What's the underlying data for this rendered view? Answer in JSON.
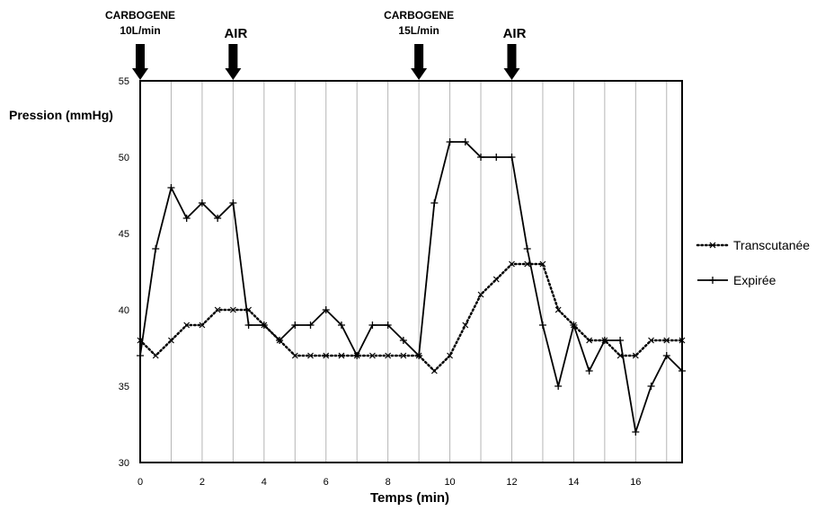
{
  "chart_data": {
    "type": "line",
    "title": "",
    "xlabel": "Temps (min)",
    "ylabel": "Pression (mmHg)",
    "xlim": [
      0,
      17.5
    ],
    "ylim": [
      30,
      55
    ],
    "grid": "vertical",
    "legend_placement": "right",
    "xticks": [
      0,
      2,
      4,
      6,
      8,
      10,
      12,
      14,
      16
    ],
    "yticks": [
      30,
      35,
      40,
      45,
      50,
      55
    ],
    "x": [
      0,
      0.5,
      1,
      1.5,
      2,
      2.5,
      3,
      3.5,
      4,
      4.5,
      5,
      5.5,
      6,
      6.5,
      7,
      7.5,
      8,
      8.5,
      9,
      9.5,
      10,
      10.5,
      11,
      11.5,
      12,
      12.5,
      13,
      13.5,
      14,
      14.5,
      15,
      15.5,
      16,
      16.5,
      17,
      17.5
    ],
    "series": [
      {
        "name": "Transcutanée",
        "style": "dotted",
        "marker": "x",
        "color": "#000000",
        "values": [
          38,
          37,
          38,
          39,
          39,
          40,
          40,
          40,
          39,
          38,
          37,
          37,
          37,
          37,
          37,
          37,
          37,
          37,
          37,
          36,
          37,
          39,
          41,
          42,
          43,
          43,
          43,
          40,
          39,
          38,
          38,
          37,
          37,
          38,
          38,
          38
        ]
      },
      {
        "name": "Expirée",
        "style": "solid",
        "marker": "+",
        "color": "#000000",
        "values": [
          37,
          44,
          48,
          46,
          47,
          46,
          47,
          39,
          39,
          38,
          39,
          39,
          40,
          39,
          37,
          39,
          39,
          38,
          37,
          47,
          51,
          51,
          50,
          50,
          50,
          44,
          39,
          35,
          39,
          36,
          38,
          38,
          32,
          35,
          37,
          36
        ]
      }
    ],
    "annotations": [
      {
        "x": 0,
        "label_lines": [
          "CARBOGENE",
          "10L/min"
        ]
      },
      {
        "x": 3,
        "label_lines": [
          "AIR"
        ]
      },
      {
        "x": 9,
        "label_lines": [
          "CARBOGENE",
          "15L/min"
        ]
      },
      {
        "x": 12,
        "label_lines": [
          "AIR"
        ]
      }
    ]
  }
}
